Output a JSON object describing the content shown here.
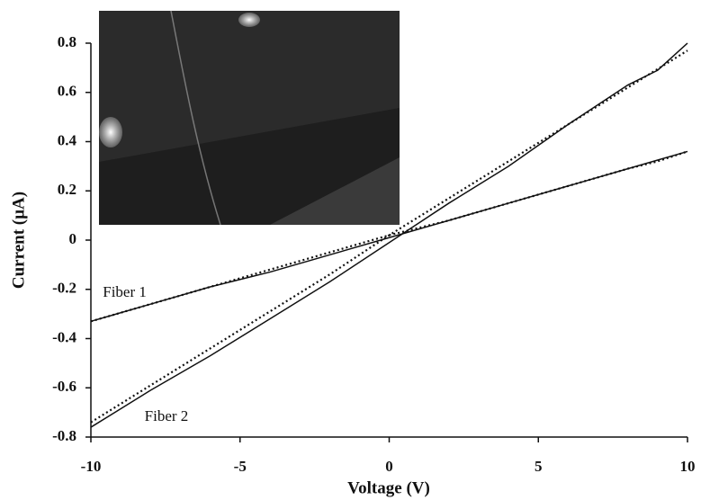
{
  "chart_data": {
    "type": "line",
    "x_label": "Voltage (V)",
    "y_label": "Current (µA)",
    "x": [
      -10,
      -8,
      -6,
      -4,
      -2,
      0,
      2,
      4,
      6,
      8,
      9,
      10
    ],
    "series": [
      {
        "name": "Fiber 1",
        "color": "#111111",
        "style": "solid",
        "values": [
          -0.33,
          -0.26,
          -0.19,
          -0.13,
          -0.06,
          0.01,
          0.08,
          0.15,
          0.22,
          0.29,
          0.325,
          0.36
        ]
      },
      {
        "color": "#111111",
        "style": "dotted",
        "values": [
          -0.33,
          -0.26,
          -0.19,
          -0.12,
          -0.05,
          0.02,
          0.08,
          0.15,
          0.22,
          0.29,
          0.32,
          0.36
        ]
      },
      {
        "name": "Fiber 2",
        "color": "#111111",
        "style": "solid",
        "values": [
          -0.76,
          -0.61,
          -0.47,
          -0.32,
          -0.17,
          -0.01,
          0.15,
          0.3,
          0.47,
          0.63,
          0.69,
          0.8
        ]
      },
      {
        "color": "#111111",
        "style": "dotted",
        "values": [
          -0.74,
          -0.59,
          -0.44,
          -0.29,
          -0.14,
          0.02,
          0.17,
          0.32,
          0.47,
          0.62,
          0.695,
          0.77
        ]
      }
    ],
    "xlim": [
      -10,
      10
    ],
    "xticks": [
      -10,
      -5,
      0,
      5,
      10
    ],
    "ylim": [
      -0.8,
      0.8
    ],
    "yticks": [
      -0.8,
      -0.6,
      -0.4,
      -0.2,
      0,
      0.2,
      0.4,
      0.6,
      0.8
    ],
    "grid": false
  }
}
